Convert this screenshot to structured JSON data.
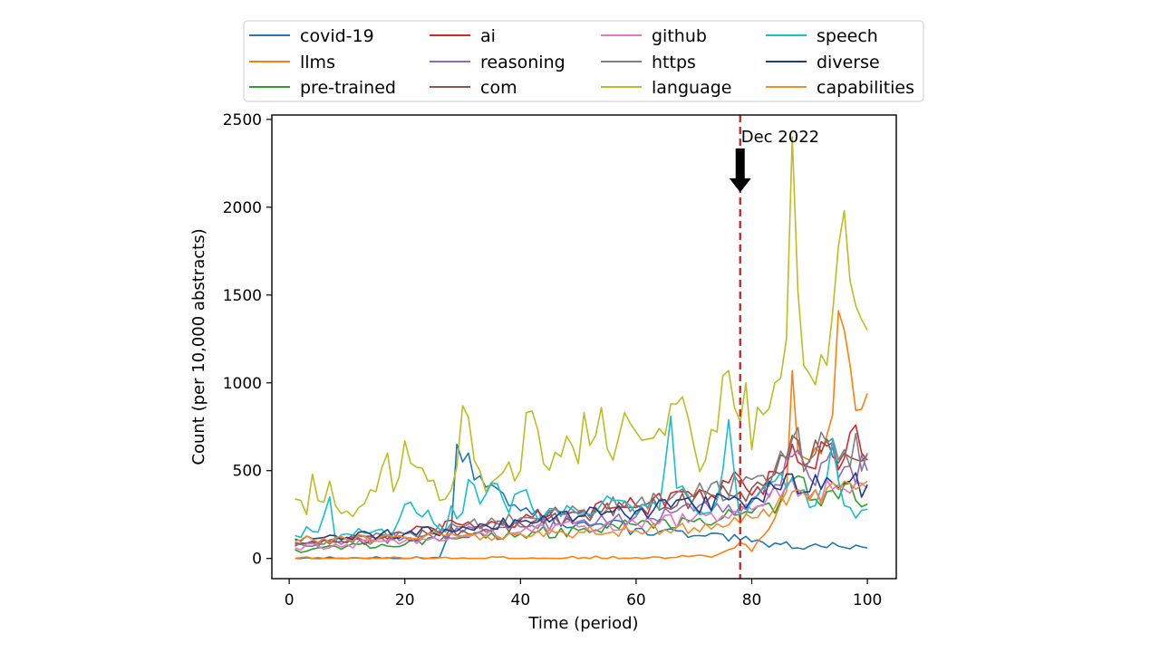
{
  "chart_data": {
    "type": "line",
    "title": "",
    "xlabel": "Time (period)",
    "ylabel": "Count (per 10,000 abstracts)",
    "xlim": [
      -3,
      105
    ],
    "ylim": [
      -115,
      2525
    ],
    "xticks": [
      0,
      20,
      40,
      60,
      80,
      100
    ],
    "yticks": [
      0,
      500,
      1000,
      1500,
      2000,
      2500
    ],
    "legend_position": "top-center",
    "annotation": {
      "x": 78,
      "label": "Dec 2022",
      "line_color": "#d62728",
      "arrow_color": "#000000"
    },
    "series": [
      {
        "name": "covid-19",
        "color": "#1f77b4",
        "anchors": [
          [
            1,
            0
          ],
          [
            10,
            0
          ],
          [
            20,
            0
          ],
          [
            26,
            5
          ],
          [
            28,
            150
          ],
          [
            29,
            650
          ],
          [
            31,
            600
          ],
          [
            33,
            470
          ],
          [
            35,
            420
          ],
          [
            38,
            300
          ],
          [
            42,
            250
          ],
          [
            50,
            200
          ],
          [
            60,
            170
          ],
          [
            70,
            130
          ],
          [
            78,
            105
          ],
          [
            80,
            95
          ],
          [
            85,
            80
          ],
          [
            90,
            70
          ],
          [
            95,
            70
          ],
          [
            100,
            60
          ]
        ]
      },
      {
        "name": "llms",
        "color": "#ff7f0e",
        "anchors": [
          [
            1,
            0
          ],
          [
            20,
            0
          ],
          [
            40,
            0
          ],
          [
            60,
            5
          ],
          [
            66,
            5
          ],
          [
            70,
            15
          ],
          [
            74,
            20
          ],
          [
            76,
            50
          ],
          [
            78,
            90
          ],
          [
            80,
            40
          ],
          [
            82,
            130
          ],
          [
            84,
            230
          ],
          [
            86,
            380
          ],
          [
            87,
            1070
          ],
          [
            88,
            600
          ],
          [
            90,
            560
          ],
          [
            93,
            700
          ],
          [
            94,
            820
          ],
          [
            95,
            1410
          ],
          [
            96,
            1300
          ],
          [
            97,
            1100
          ],
          [
            99,
            850
          ],
          [
            100,
            940
          ]
        ]
      },
      {
        "name": "pre-trained",
        "color": "#2ca02c",
        "anchors": [
          [
            1,
            50
          ],
          [
            10,
            70
          ],
          [
            20,
            80
          ],
          [
            30,
            120
          ],
          [
            40,
            140
          ],
          [
            50,
            160
          ],
          [
            60,
            190
          ],
          [
            70,
            210
          ],
          [
            75,
            230
          ],
          [
            78,
            250
          ],
          [
            80,
            260
          ],
          [
            85,
            330
          ],
          [
            88,
            470
          ],
          [
            90,
            330
          ],
          [
            93,
            380
          ],
          [
            96,
            420
          ],
          [
            98,
            330
          ],
          [
            100,
            310
          ]
        ]
      },
      {
        "name": "ai",
        "color": "#d62728",
        "anchors": [
          [
            1,
            90
          ],
          [
            10,
            110
          ],
          [
            20,
            140
          ],
          [
            30,
            190
          ],
          [
            40,
            220
          ],
          [
            50,
            260
          ],
          [
            60,
            300
          ],
          [
            70,
            350
          ],
          [
            76,
            430
          ],
          [
            78,
            460
          ],
          [
            80,
            360
          ],
          [
            85,
            480
          ],
          [
            87,
            650
          ],
          [
            90,
            520
          ],
          [
            93,
            640
          ],
          [
            96,
            570
          ],
          [
            98,
            760
          ],
          [
            99,
            600
          ],
          [
            100,
            560
          ]
        ]
      },
      {
        "name": "reasoning",
        "color": "#9467bd",
        "anchors": [
          [
            1,
            80
          ],
          [
            10,
            100
          ],
          [
            20,
            120
          ],
          [
            30,
            150
          ],
          [
            40,
            180
          ],
          [
            50,
            210
          ],
          [
            60,
            240
          ],
          [
            70,
            270
          ],
          [
            78,
            300
          ],
          [
            80,
            320
          ],
          [
            84,
            420
          ],
          [
            87,
            580
          ],
          [
            90,
            460
          ],
          [
            93,
            560
          ],
          [
            96,
            520
          ],
          [
            100,
            500
          ]
        ]
      },
      {
        "name": "com",
        "color": "#8c564b",
        "anchors": [
          [
            1,
            70
          ],
          [
            10,
            90
          ],
          [
            20,
            120
          ],
          [
            30,
            160
          ],
          [
            40,
            200
          ],
          [
            50,
            240
          ],
          [
            60,
            290
          ],
          [
            70,
            340
          ],
          [
            78,
            380
          ],
          [
            80,
            400
          ],
          [
            84,
            480
          ],
          [
            87,
            700
          ],
          [
            90,
            550
          ],
          [
            93,
            680
          ],
          [
            96,
            600
          ],
          [
            100,
            590
          ]
        ]
      },
      {
        "name": "github",
        "color": "#e377c2",
        "anchors": [
          [
            1,
            60
          ],
          [
            10,
            80
          ],
          [
            20,
            100
          ],
          [
            30,
            130
          ],
          [
            40,
            150
          ],
          [
            50,
            180
          ],
          [
            60,
            200
          ],
          [
            70,
            230
          ],
          [
            78,
            260
          ],
          [
            82,
            300
          ],
          [
            86,
            420
          ],
          [
            90,
            350
          ],
          [
            95,
            420
          ],
          [
            100,
            400
          ]
        ]
      },
      {
        "name": "https",
        "color": "#7f7f7f",
        "anchors": [
          [
            1,
            80
          ],
          [
            10,
            110
          ],
          [
            20,
            140
          ],
          [
            30,
            180
          ],
          [
            40,
            230
          ],
          [
            50,
            270
          ],
          [
            60,
            310
          ],
          [
            70,
            360
          ],
          [
            78,
            420
          ],
          [
            80,
            450
          ],
          [
            84,
            510
          ],
          [
            87,
            680
          ],
          [
            90,
            560
          ],
          [
            93,
            660
          ],
          [
            96,
            620
          ],
          [
            100,
            600
          ]
        ]
      },
      {
        "name": "language",
        "color": "#bcbd22",
        "anchors": [
          [
            1,
            340
          ],
          [
            2,
            330
          ],
          [
            3,
            250
          ],
          [
            4,
            480
          ],
          [
            6,
            320
          ],
          [
            7,
            440
          ],
          [
            8,
            300
          ],
          [
            10,
            270
          ],
          [
            12,
            290
          ],
          [
            15,
            380
          ],
          [
            17,
            600
          ],
          [
            18,
            380
          ],
          [
            20,
            670
          ],
          [
            22,
            520
          ],
          [
            24,
            440
          ],
          [
            26,
            330
          ],
          [
            28,
            390
          ],
          [
            29,
            520
          ],
          [
            30,
            870
          ],
          [
            32,
            560
          ],
          [
            34,
            380
          ],
          [
            36,
            460
          ],
          [
            38,
            550
          ],
          [
            40,
            500
          ],
          [
            41,
            830
          ],
          [
            42,
            840
          ],
          [
            44,
            540
          ],
          [
            47,
            580
          ],
          [
            49,
            640
          ],
          [
            50,
            540
          ],
          [
            51,
            830
          ],
          [
            53,
            700
          ],
          [
            54,
            860
          ],
          [
            56,
            560
          ],
          [
            58,
            830
          ],
          [
            60,
            720
          ],
          [
            62,
            680
          ],
          [
            64,
            740
          ],
          [
            65,
            700
          ],
          [
            66,
            880
          ],
          [
            68,
            920
          ],
          [
            70,
            640
          ],
          [
            72,
            560
          ],
          [
            74,
            720
          ],
          [
            75,
            1040
          ],
          [
            76,
            1070
          ],
          [
            77,
            860
          ],
          [
            78,
            780
          ],
          [
            79,
            1000
          ],
          [
            80,
            620
          ],
          [
            81,
            860
          ],
          [
            82,
            820
          ],
          [
            84,
            1000
          ],
          [
            86,
            1250
          ],
          [
            87,
            2400
          ],
          [
            88,
            1520
          ],
          [
            89,
            1100
          ],
          [
            90,
            1050
          ],
          [
            91,
            990
          ],
          [
            92,
            1160
          ],
          [
            93,
            1100
          ],
          [
            94,
            1400
          ],
          [
            95,
            1780
          ],
          [
            96,
            1980
          ],
          [
            97,
            1580
          ],
          [
            98,
            1440
          ],
          [
            99,
            1360
          ],
          [
            100,
            1300
          ]
        ]
      },
      {
        "name": "speech",
        "color": "#17becf",
        "anchors": [
          [
            1,
            130
          ],
          [
            3,
            180
          ],
          [
            5,
            150
          ],
          [
            7,
            350
          ],
          [
            8,
            100
          ],
          [
            10,
            140
          ],
          [
            12,
            170
          ],
          [
            15,
            160
          ],
          [
            18,
            150
          ],
          [
            21,
            320
          ],
          [
            25,
            200
          ],
          [
            27,
            160
          ],
          [
            28,
            300
          ],
          [
            30,
            260
          ],
          [
            31,
            450
          ],
          [
            33,
            310
          ],
          [
            35,
            430
          ],
          [
            38,
            260
          ],
          [
            40,
            380
          ],
          [
            44,
            240
          ],
          [
            48,
            300
          ],
          [
            52,
            250
          ],
          [
            56,
            330
          ],
          [
            60,
            250
          ],
          [
            64,
            280
          ],
          [
            66,
            810
          ],
          [
            67,
            400
          ],
          [
            70,
            290
          ],
          [
            74,
            330
          ],
          [
            76,
            790
          ],
          [
            78,
            200
          ],
          [
            80,
            340
          ],
          [
            84,
            440
          ],
          [
            87,
            460
          ],
          [
            90,
            290
          ],
          [
            93,
            460
          ],
          [
            94,
            680
          ],
          [
            96,
            300
          ],
          [
            98,
            230
          ],
          [
            100,
            280
          ]
        ]
      },
      {
        "name": "diverse",
        "color": "#1f3b8c",
        "anchors": [
          [
            1,
            110
          ],
          [
            10,
            120
          ],
          [
            20,
            140
          ],
          [
            30,
            180
          ],
          [
            40,
            210
          ],
          [
            50,
            240
          ],
          [
            60,
            270
          ],
          [
            70,
            300
          ],
          [
            78,
            330
          ],
          [
            80,
            340
          ],
          [
            84,
            400
          ],
          [
            87,
            480
          ],
          [
            90,
            380
          ],
          [
            93,
            460
          ],
          [
            96,
            430
          ],
          [
            100,
            420
          ]
        ]
      },
      {
        "name": "capabilities",
        "color": "#f28e2b",
        "anchors": [
          [
            1,
            100
          ],
          [
            10,
            110
          ],
          [
            20,
            120
          ],
          [
            30,
            130
          ],
          [
            40,
            140
          ],
          [
            50,
            150
          ],
          [
            60,
            160
          ],
          [
            70,
            175
          ],
          [
            76,
            190
          ],
          [
            78,
            200
          ],
          [
            80,
            230
          ],
          [
            84,
            290
          ],
          [
            87,
            380
          ],
          [
            90,
            330
          ],
          [
            93,
            400
          ],
          [
            96,
            440
          ],
          [
            100,
            440
          ]
        ]
      }
    ]
  }
}
